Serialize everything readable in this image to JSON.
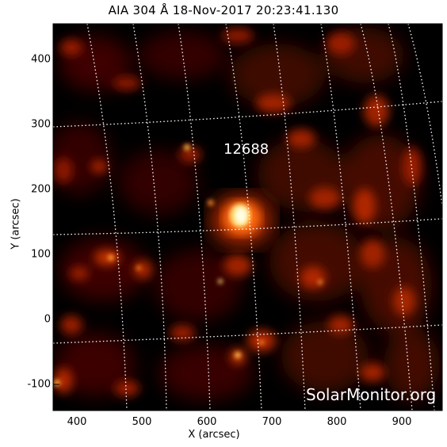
{
  "title": "AIA 304 Å 18-Nov-2017 20:23:41.130",
  "axes": {
    "xlabel": "X (arcsec)",
    "ylabel": "Y (arcsec)",
    "x_ticks": [
      "400",
      "500",
      "600",
      "700",
      "800",
      "900"
    ],
    "y_ticks": [
      "400",
      "300",
      "200",
      "100",
      "0",
      "-100"
    ]
  },
  "annotations": {
    "active_region": "12688"
  },
  "watermark": "SolarMonitor.org",
  "colors": {
    "background": "#000000",
    "plasma_dark": "#5a0800",
    "plasma_mid": "#c02a00",
    "plasma_bright": "#ff8c20",
    "flare_core": "#ffffe0",
    "grid": "#ffffff"
  }
}
